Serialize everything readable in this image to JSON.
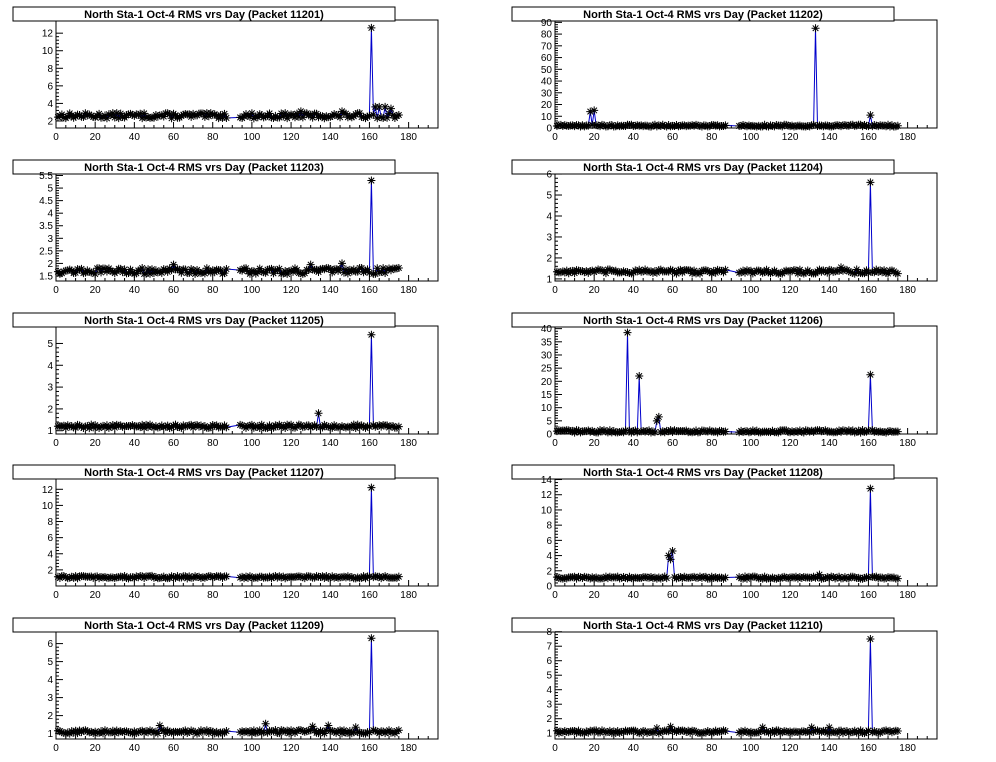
{
  "colors": {
    "line": "#0000cc",
    "marker": "#000000",
    "background": "#ffffff"
  },
  "chart_data": [
    {
      "type": "line",
      "title": "North Sta-1 Oct-4 RMS vrs Day (Packet 11201)",
      "xlim": [
        0,
        195
      ],
      "ylim": [
        1.2,
        13.5
      ],
      "xticks": [
        0,
        20,
        40,
        60,
        80,
        100,
        120,
        140,
        160,
        180
      ],
      "yticks": [
        2,
        4,
        6,
        8,
        10,
        12
      ],
      "baseline": 2.6,
      "jitter": 0.3,
      "gap_x": [
        88,
        93
      ],
      "spikes": [
        [
          161,
          12.6
        ],
        [
          146,
          3.1
        ],
        [
          125,
          3.1
        ],
        [
          163,
          3.6
        ],
        [
          165,
          3.6
        ],
        [
          168,
          3.6
        ],
        [
          171,
          3.4
        ]
      ]
    },
    {
      "type": "line",
      "title": "North Sta-1 Oct-4 RMS vrs Day (Packet 11202)",
      "xlim": [
        0,
        195
      ],
      "ylim": [
        0,
        92
      ],
      "xticks": [
        0,
        20,
        40,
        60,
        80,
        100,
        120,
        140,
        160,
        180
      ],
      "yticks": [
        0,
        10,
        20,
        30,
        40,
        50,
        60,
        70,
        80,
        90
      ],
      "baseline": 2,
      "jitter": 0.8,
      "gap_x": [
        88,
        93
      ],
      "spikes": [
        [
          18,
          14
        ],
        [
          20,
          15
        ],
        [
          133,
          85
        ],
        [
          161,
          11
        ]
      ]
    },
    {
      "type": "line",
      "title": "North Sta-1 Oct-4 RMS vrs Day (Packet 11203)",
      "xlim": [
        0,
        195
      ],
      "ylim": [
        1.3,
        5.6
      ],
      "xticks": [
        0,
        20,
        40,
        60,
        80,
        100,
        120,
        140,
        160,
        180
      ],
      "yticks": [
        1.5,
        2,
        2.5,
        3,
        3.5,
        4,
        4.5,
        5,
        5.5
      ],
      "baseline": 1.7,
      "jitter": 0.12,
      "gap_x": [
        88,
        93
      ],
      "spikes": [
        [
          161,
          5.3
        ],
        [
          60,
          1.95
        ],
        [
          146,
          2.0
        ],
        [
          130,
          1.95
        ]
      ]
    },
    {
      "type": "line",
      "title": "North Sta-1 Oct-4 RMS vrs Day (Packet 11204)",
      "xlim": [
        0,
        195
      ],
      "ylim": [
        0.9,
        6.05
      ],
      "xticks": [
        0,
        20,
        40,
        60,
        80,
        100,
        120,
        140,
        160,
        180
      ],
      "yticks": [
        1,
        2,
        3,
        4,
        5,
        6
      ],
      "baseline": 1.35,
      "jitter": 0.1,
      "gap_x": [
        88,
        93
      ],
      "spikes": [
        [
          161,
          5.6
        ],
        [
          146,
          1.55
        ]
      ]
    },
    {
      "type": "line",
      "title": "North Sta-1 Oct-4 RMS vrs Day (Packet 11205)",
      "xlim": [
        0,
        195
      ],
      "ylim": [
        0.85,
        5.8
      ],
      "xticks": [
        0,
        20,
        40,
        60,
        80,
        100,
        120,
        140,
        160,
        180
      ],
      "yticks": [
        1,
        2,
        3,
        4,
        5
      ],
      "baseline": 1.2,
      "jitter": 0.08,
      "gap_x": [
        88,
        93
      ],
      "spikes": [
        [
          161,
          5.4
        ],
        [
          134,
          1.8
        ]
      ]
    },
    {
      "type": "line",
      "title": "North Sta-1 Oct-4 RMS vrs Day (Packet 11206)",
      "xlim": [
        0,
        195
      ],
      "ylim": [
        0,
        41
      ],
      "xticks": [
        0,
        20,
        40,
        60,
        80,
        100,
        120,
        140,
        160,
        180
      ],
      "yticks": [
        0,
        5,
        10,
        15,
        20,
        25,
        30,
        35,
        40
      ],
      "baseline": 1,
      "jitter": 0.5,
      "gap_x": [
        88,
        93
      ],
      "spikes": [
        [
          37,
          38.5
        ],
        [
          43,
          22
        ],
        [
          52,
          5
        ],
        [
          53,
          6.5
        ],
        [
          161,
          22.5
        ]
      ]
    },
    {
      "type": "line",
      "title": "North Sta-1 Oct-4 RMS vrs Day (Packet 11207)",
      "xlim": [
        0,
        195
      ],
      "ylim": [
        0,
        13.4
      ],
      "xticks": [
        0,
        20,
        40,
        60,
        80,
        100,
        120,
        140,
        160,
        180
      ],
      "yticks": [
        2,
        4,
        6,
        8,
        10,
        12
      ],
      "baseline": 1.1,
      "jitter": 0.15,
      "gap_x": [
        88,
        93
      ],
      "spikes": [
        [
          161,
          12.2
        ]
      ]
    },
    {
      "type": "line",
      "title": "North Sta-1 Oct-4 RMS vrs Day (Packet 11208)",
      "xlim": [
        0,
        195
      ],
      "ylim": [
        0,
        14.2
      ],
      "xticks": [
        0,
        20,
        40,
        60,
        80,
        100,
        120,
        140,
        160,
        180
      ],
      "yticks": [
        0,
        2,
        4,
        6,
        8,
        10,
        12,
        14
      ],
      "baseline": 1.1,
      "jitter": 0.15,
      "gap_x": [
        88,
        93
      ],
      "spikes": [
        [
          58,
          4.0
        ],
        [
          59,
          3.5
        ],
        [
          60,
          4.6
        ],
        [
          135,
          1.5
        ],
        [
          161,
          12.8
        ]
      ]
    },
    {
      "type": "line",
      "title": "North Sta-1 Oct-4 RMS vrs Day (Packet 11209)",
      "xlim": [
        0,
        195
      ],
      "ylim": [
        0.7,
        6.7
      ],
      "xticks": [
        0,
        20,
        40,
        60,
        80,
        100,
        120,
        140,
        160,
        180
      ],
      "yticks": [
        1,
        2,
        3,
        4,
        5,
        6
      ],
      "baseline": 1.1,
      "jitter": 0.1,
      "gap_x": [
        88,
        93
      ],
      "spikes": [
        [
          53,
          1.45
        ],
        [
          107,
          1.55
        ],
        [
          131,
          1.4
        ],
        [
          139,
          1.45
        ],
        [
          153,
          1.35
        ],
        [
          161,
          6.3
        ]
      ]
    },
    {
      "type": "line",
      "title": "North Sta-1 Oct-4 RMS vrs Day (Packet 11210)",
      "xlim": [
        0,
        195
      ],
      "ylim": [
        0.6,
        8.05
      ],
      "xticks": [
        0,
        20,
        40,
        60,
        80,
        100,
        120,
        140,
        160,
        180
      ],
      "yticks": [
        1,
        2,
        3,
        4,
        5,
        6,
        7,
        8
      ],
      "baseline": 1.1,
      "jitter": 0.1,
      "gap_x": [
        88,
        93
      ],
      "spikes": [
        [
          52,
          1.35
        ],
        [
          59,
          1.45
        ],
        [
          106,
          1.4
        ],
        [
          131,
          1.4
        ],
        [
          140,
          1.4
        ],
        [
          161,
          7.5
        ]
      ]
    }
  ]
}
